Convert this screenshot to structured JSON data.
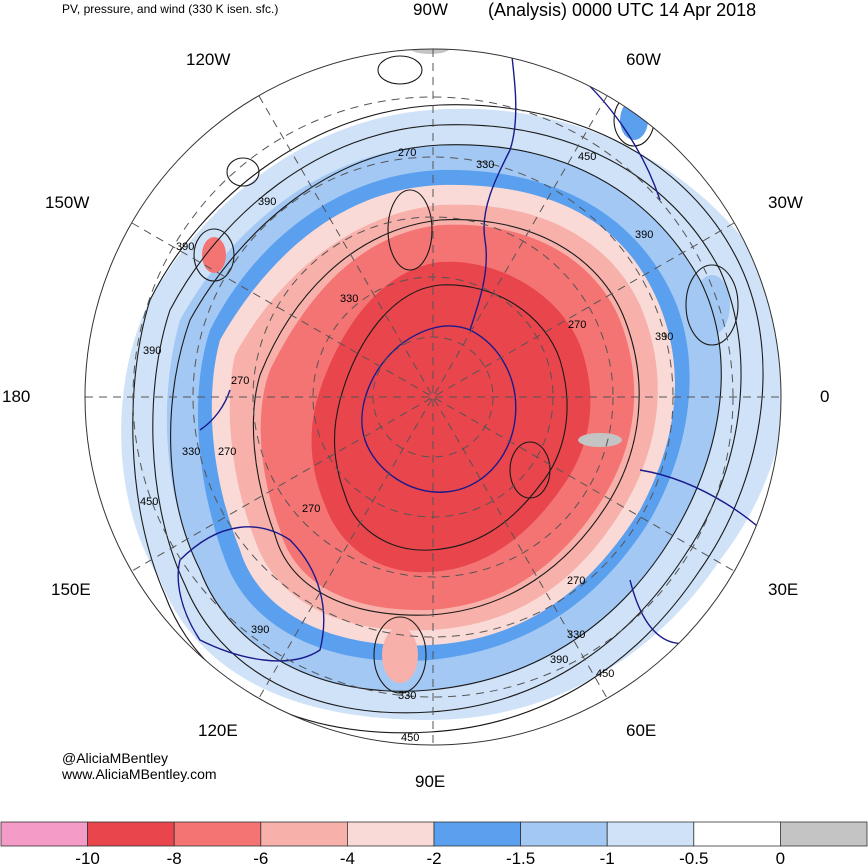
{
  "title_left": "PV, pressure, and wind (330 K isen. sfc.)",
  "title_right": "(Analysis) 0000 UTC 14 Apr 2018",
  "longitude_labels": {
    "top": "90W",
    "w60": "60W",
    "w30": "30W",
    "zero": "0",
    "e30": "30E",
    "e60": "60E",
    "bottom": "90E",
    "e120": "120E",
    "e150": "150E",
    "dateline": "180",
    "w150": "150W",
    "w120": "120W"
  },
  "contour_labels": {
    "c270a": "270",
    "c330a": "330",
    "c450a": "450",
    "c390a": "390",
    "c270b": "270",
    "c390b": "390",
    "c390c": "390",
    "c330b": "330",
    "c390d": "390",
    "c270c": "270",
    "c330c": "330",
    "c270d": "270",
    "c450b": "450",
    "c270e": "270",
    "c270f": "270",
    "c330d": "330",
    "c390e": "390",
    "c450c": "450",
    "c390f": "390",
    "c330e": "330",
    "c450d": "450"
  },
  "credits": {
    "handle": "@AliciaMBentley",
    "site": "www.AliciaMBentley.com"
  },
  "colorbar": {
    "labels": [
      "-10",
      "-8",
      "-6",
      "-4",
      "-2",
      "-1.5",
      "-1",
      "-0.5",
      "0"
    ],
    "colors": [
      "#f59bc8",
      "#e8454c",
      "#f47474",
      "#f7b0aa",
      "#fadad6",
      "#5aa0ee",
      "#a3c8f4",
      "#cfe2f8",
      "#ffffff",
      "#c4c4c4"
    ]
  },
  "colors": {
    "strong_negative": "#e8454c",
    "moderate_negative": "#f47474",
    "weak_negative": "#f7b0aa",
    "faint_negative": "#fadad6",
    "blue_strong": "#5aa0ee",
    "blue_mid": "#a3c8f4",
    "blue_light": "#cfe2f8",
    "coastline": "#1a1a8c",
    "contour": "#1a1a1a",
    "grid": "#555555"
  }
}
